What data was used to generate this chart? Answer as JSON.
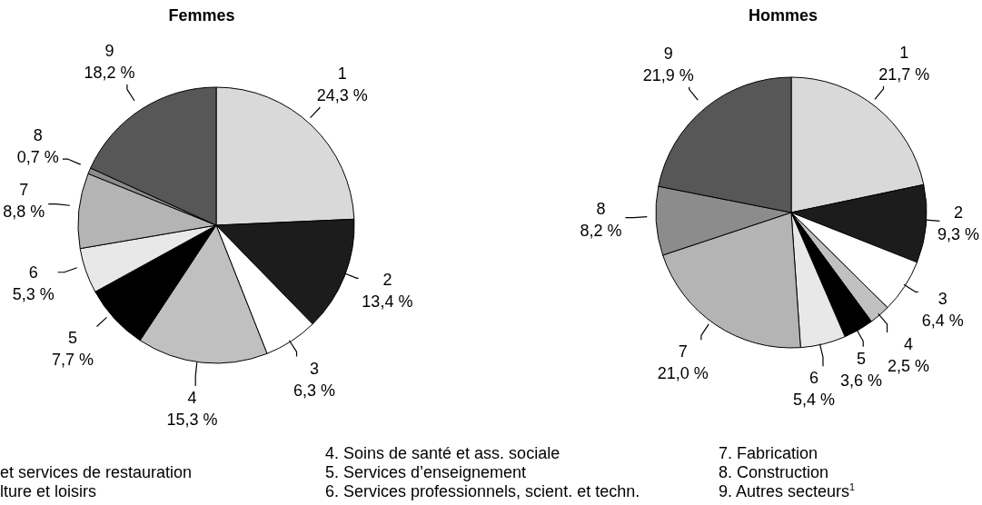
{
  "chart_data": [
    {
      "type": "pie",
      "title": "Femmes",
      "categories": [
        "1",
        "2",
        "3",
        "4",
        "5",
        "6",
        "7",
        "8",
        "9"
      ],
      "values": [
        24.3,
        13.4,
        6.3,
        15.3,
        7.7,
        5.3,
        8.8,
        0.7,
        18.2
      ],
      "colors": [
        "#d9d9d9",
        "#1c1c1c",
        "#ffffff",
        "#c0c0c0",
        "#000000",
        "#e8e8e8",
        "#b4b4b4",
        "#8c8c8c",
        "#575757"
      ],
      "value_labels": [
        "24,3 %",
        "13,4 %",
        "6,3 %",
        "15,3 %",
        "7,7 %",
        "5,3 %",
        "8,8 %",
        "0,7 %",
        "18,2 %"
      ],
      "annotations": [
        "et services de restauration",
        "lture et loisirs",
        "4. Soins de santé et ass. sociale",
        "5. Services d’enseignement",
        "6. Services professionnels, scient. et techn.",
        "7. Fabrication",
        "8. Construction",
        "9. Autres secteurs$^{1}$"
      ]
    },
    {
      "type": "pie",
      "title": "Hommes",
      "categories": [
        "1",
        "2",
        "3",
        "4",
        "5",
        "6",
        "7",
        "8",
        "9"
      ],
      "values": [
        21.7,
        9.3,
        6.4,
        2.5,
        3.6,
        5.4,
        21.0,
        8.2,
        21.9
      ],
      "colors": [
        "#d9d9d9",
        "#1c1c1c",
        "#ffffff",
        "#c0c0c0",
        "#000000",
        "#e8e8e8",
        "#b4b4b4",
        "#8c8c8c",
        "#575757"
      ],
      "value_labels": [
        "21,7 %",
        "9,3 %",
        "6,4 %",
        "2,5 %",
        "3,6 %",
        "5,4 %",
        "21,0 %",
        "8,2 %",
        "21,9 %"
      ]
    }
  ]
}
